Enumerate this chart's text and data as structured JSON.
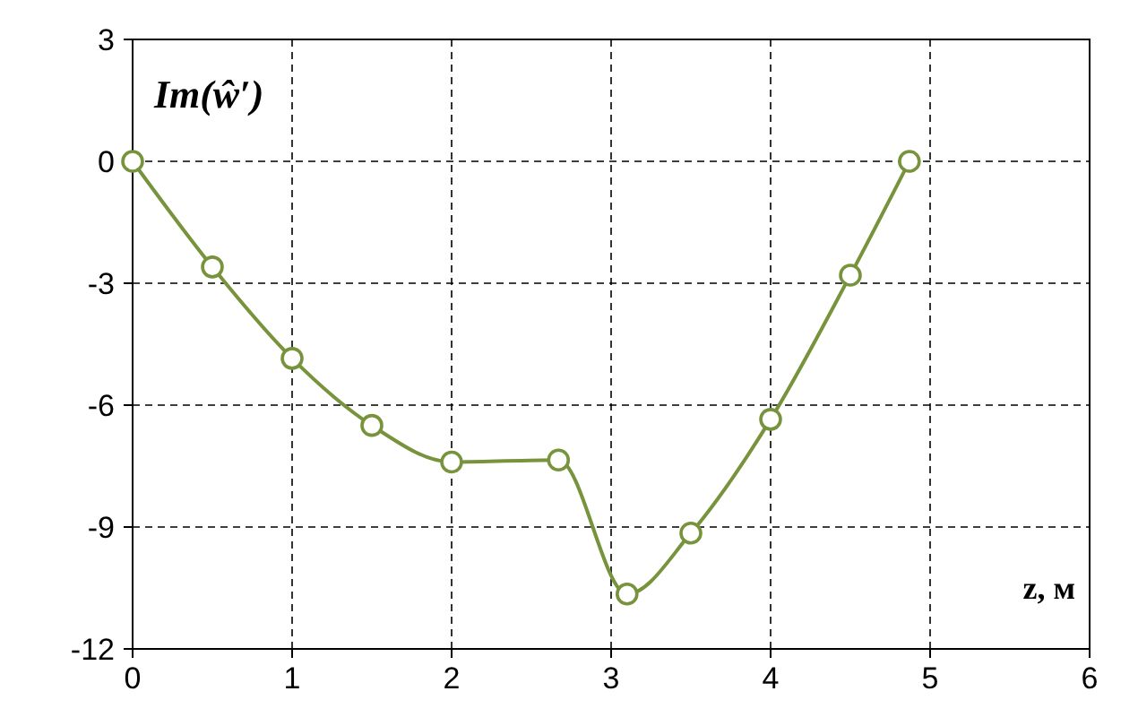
{
  "chart_data": {
    "type": "line",
    "ylabel": "Im(ŵ′)",
    "xlabel": "z, м",
    "x": [
      0,
      0.5,
      1,
      1.5,
      2,
      2.67,
      3.1,
      3.5,
      4,
      4.5,
      4.87
    ],
    "series": [
      {
        "color": "#77933c",
        "values": [
          0,
          -2.6,
          -4.85,
          -6.5,
          -7.4,
          -7.35,
          -10.65,
          -9.15,
          -6.35,
          -2.8,
          0
        ]
      }
    ],
    "xlim": [
      0,
      6
    ],
    "xticks": [
      0,
      1,
      2,
      3,
      4,
      5,
      6
    ],
    "ylim": [
      -12,
      3
    ],
    "yticks": [
      -12,
      -9,
      -6,
      -3,
      0,
      3
    ],
    "grid": true,
    "marker": "circle",
    "line_style": "solid"
  }
}
